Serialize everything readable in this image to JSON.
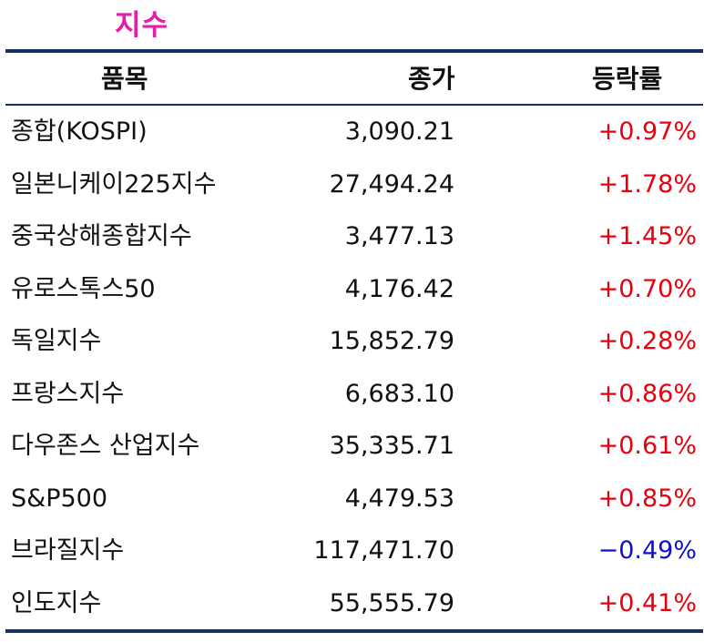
{
  "title": "지수",
  "headers": {
    "name": "품목",
    "close": "종가",
    "change": "등락률"
  },
  "colors": {
    "title": "#e020a8",
    "rule": "#1a2e66",
    "up": "#e8000e",
    "down": "#1010c8"
  },
  "rows": [
    {
      "name": "종합(KOSPI)",
      "close": "3,090.21",
      "change": "+0.97%",
      "dir": "up"
    },
    {
      "name": "일본니케이225지수",
      "close": "27,494.24",
      "change": "+1.78%",
      "dir": "up"
    },
    {
      "name": "중국상해종합지수",
      "close": "3,477.13",
      "change": "+1.45%",
      "dir": "up"
    },
    {
      "name": "유로스톡스50",
      "close": "4,176.42",
      "change": "+0.70%",
      "dir": "up"
    },
    {
      "name": "독일지수",
      "close": "15,852.79",
      "change": "+0.28%",
      "dir": "up"
    },
    {
      "name": "프랑스지수",
      "close": "6,683.10",
      "change": "+0.86%",
      "dir": "up"
    },
    {
      "name": "다우존스 산업지수",
      "close": "35,335.71",
      "change": "+0.61%",
      "dir": "up"
    },
    {
      "name": "S&P500",
      "close": "4,479.53",
      "change": "+0.85%",
      "dir": "up"
    },
    {
      "name": "브라질지수",
      "close": "117,471.70",
      "change": "−0.49%",
      "dir": "down"
    },
    {
      "name": "인도지수",
      "close": "55,555.79",
      "change": "+0.41%",
      "dir": "up"
    }
  ]
}
